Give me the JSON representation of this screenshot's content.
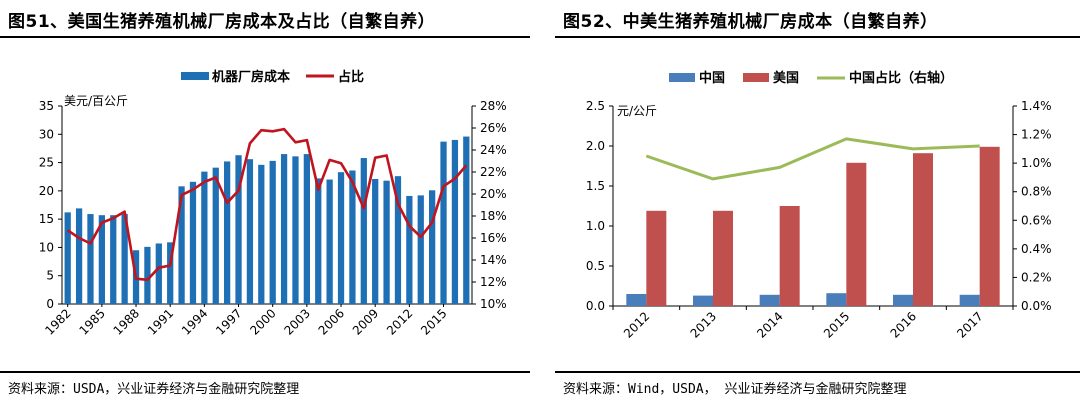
{
  "left": {
    "title": "图51、美国生猪养殖机械厂房成本及占比（自繁自养）",
    "source": "资料来源：USDA，兴业证券经济与金融研究院整理",
    "chart_data": {
      "type": "bar+line",
      "title": "图51、美国生猪养殖机械厂房成本及占比（自繁自养）",
      "ylabel": "美元/百公斤",
      "y_ticks": [
        "0",
        "5",
        "10",
        "15",
        "20",
        "25",
        "30",
        "35"
      ],
      "y2_ticks": [
        "10%",
        "12%",
        "14%",
        "16%",
        "18%",
        "20%",
        "22%",
        "24%",
        "26%",
        "28%"
      ],
      "ylim": [
        0,
        35
      ],
      "y2lim": [
        10,
        28
      ],
      "x": [
        1982,
        1983,
        1984,
        1985,
        1986,
        1987,
        1988,
        1989,
        1990,
        1991,
        1992,
        1993,
        1994,
        1995,
        1996,
        1997,
        1998,
        1999,
        2000,
        2001,
        2002,
        2003,
        2004,
        2005,
        2006,
        2007,
        2008,
        2009,
        2010,
        2011,
        2012,
        2013,
        2014,
        2015,
        2016,
        2017
      ],
      "x_tick_labels": [
        "1982",
        "1985",
        "1988",
        "1991",
        "1994",
        "1997",
        "2000",
        "2003",
        "2006",
        "2009",
        "2012",
        "2015"
      ],
      "series": [
        {
          "name": "机器厂房成本",
          "type": "bar",
          "color": "#1f6fb5",
          "values": [
            16.2,
            16.9,
            15.9,
            15.7,
            15.7,
            15.9,
            9.5,
            10.1,
            10.7,
            10.9,
            20.8,
            21.6,
            23.4,
            24.1,
            25.2,
            26.3,
            25.6,
            24.6,
            25.3,
            26.5,
            26.1,
            26.5,
            22.2,
            22.0,
            23.3,
            23.6,
            25.8,
            22.1,
            21.8,
            22.6,
            19.1,
            19.2,
            20.1,
            28.7,
            29.0,
            29.6
          ]
        },
        {
          "name": "占比",
          "type": "line",
          "axis": "right",
          "color": "#c0141e",
          "values": [
            16.7,
            16.0,
            15.5,
            17.4,
            17.8,
            18.4,
            12.3,
            12.2,
            13.3,
            13.5,
            19.9,
            20.4,
            21.1,
            21.5,
            19.2,
            20.3,
            24.6,
            25.8,
            25.7,
            25.9,
            24.7,
            24.9,
            20.4,
            23.1,
            22.8,
            21.1,
            18.7,
            23.3,
            23.5,
            19.1,
            17.1,
            16.1,
            17.4,
            20.7,
            21.4,
            22.6
          ]
        }
      ]
    }
  },
  "right": {
    "title": "图52、中美生猪养殖机械厂房成本（自繁自养）",
    "source": "资料来源：Wind，USDA， 兴业证券经济与金融研究院整理",
    "chart_data": {
      "type": "bar+line",
      "title": "图52、中美生猪养殖机械厂房成本（自繁自养）",
      "ylabel": "元/公斤",
      "y_ticks": [
        "0.0",
        "0.5",
        "1.0",
        "1.5",
        "2.0",
        "2.5"
      ],
      "y2_ticks": [
        "0.0%",
        "0.2%",
        "0.4%",
        "0.6%",
        "0.8%",
        "1.0%",
        "1.2%",
        "1.4%"
      ],
      "ylim": [
        0,
        2.5
      ],
      "y2lim": [
        0,
        1.4
      ],
      "categories": [
        "2012",
        "2013",
        "2014",
        "2015",
        "2016",
        "2017"
      ],
      "series": [
        {
          "name": "中国",
          "type": "bar",
          "color": "#4a7ebb",
          "values": [
            0.15,
            0.13,
            0.14,
            0.16,
            0.14,
            0.14
          ]
        },
        {
          "name": "美国",
          "type": "bar",
          "color": "#c0504d",
          "values": [
            1.19,
            1.19,
            1.25,
            1.79,
            1.91,
            1.99
          ]
        },
        {
          "name": "中国占比（右轴）",
          "type": "line",
          "axis": "right",
          "color": "#9bbb59",
          "values": [
            1.05,
            0.89,
            0.97,
            1.17,
            1.1,
            1.12
          ]
        }
      ]
    }
  }
}
